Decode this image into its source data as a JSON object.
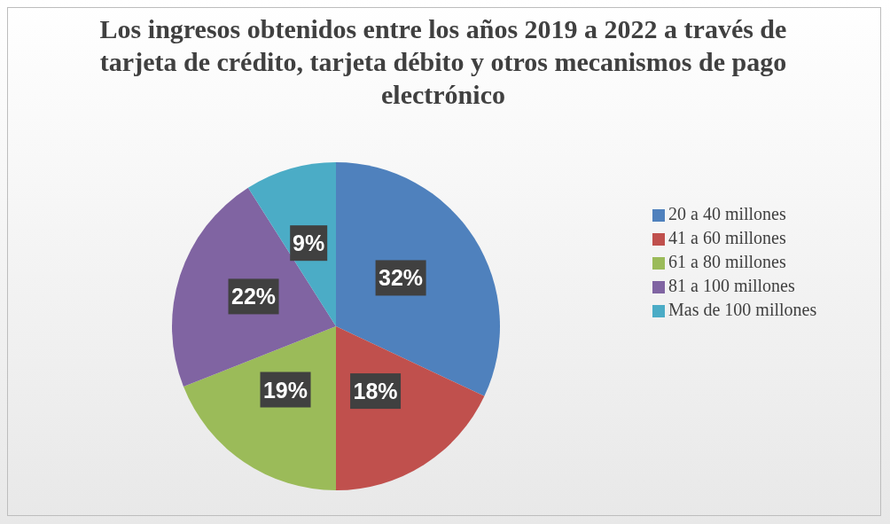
{
  "chart_data": {
    "type": "pie",
    "title": "Los ingresos obtenidos entre los años 2019 a 2022 a través de tarjeta de crédito, tarjeta débito y otros mecanismos de pago electrónico",
    "categories": [
      "20 a 40 millones",
      "41 a 60 millones",
      "61 a 80 millones",
      "81 a 100 millones",
      "Mas de 100 millones"
    ],
    "values": [
      32,
      18,
      19,
      22,
      9
    ],
    "colors": [
      "#4f81bd",
      "#c0504d",
      "#9bbb59",
      "#8064a2",
      "#4bacc6"
    ],
    "value_labels": [
      "32%",
      "18%",
      "19%",
      "22%",
      "9%"
    ],
    "legend": "right"
  }
}
